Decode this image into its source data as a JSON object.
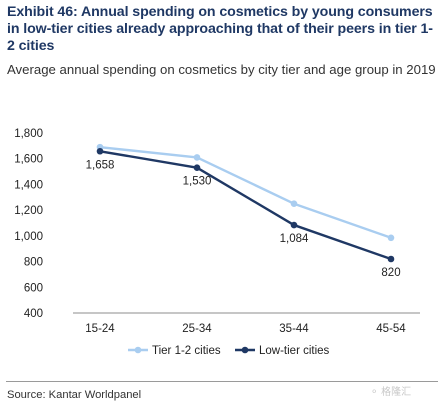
{
  "title": "Exhibit 46: Annual spending on cosmetics by young consumers in low-tier cities already approaching that of their peers in tier 1-2 cities",
  "subtitle": "Average annual spending on cosmetics by city tier and age group in 2019",
  "source": "Source: Kantar Worldpanel",
  "watermark": "⚬ 格隆汇",
  "chart_data": {
    "type": "line",
    "categories": [
      "15-24",
      "25-34",
      "35-44",
      "45-54"
    ],
    "ylim": [
      400,
      1800
    ],
    "yticks": [
      400,
      600,
      800,
      1000,
      1200,
      1400,
      1600,
      1800
    ],
    "ytick_labels": [
      "400",
      "600",
      "800",
      "1,000",
      "1,200",
      "1,400",
      "1,600",
      "1,800"
    ],
    "grid": false,
    "legend_position": "bottom",
    "series": [
      {
        "name": "Tier 1-2 cities",
        "values": [
          1690,
          1610,
          1250,
          985
        ],
        "color": "#a9cdf0",
        "labels": [
          null,
          null,
          null,
          null
        ]
      },
      {
        "name": "Low-tier cities",
        "values": [
          1658,
          1530,
          1084,
          820
        ],
        "color": "#1f3864",
        "labels": [
          "1,658",
          "1,530",
          "1,084",
          "820"
        ]
      }
    ]
  }
}
